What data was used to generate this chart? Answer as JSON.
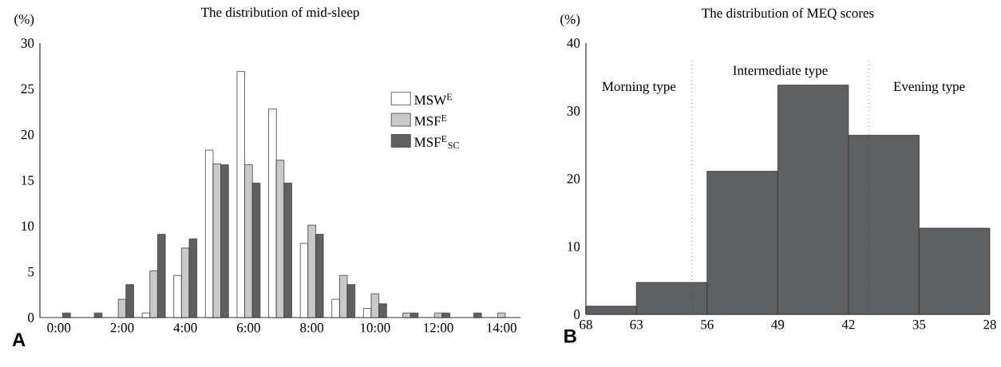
{
  "chart_data": [
    {
      "type": "bar",
      "title": "The distribution of mid-sleep",
      "ylabel": "(%)",
      "categories": [
        "0:00",
        null,
        "2:00",
        null,
        "4:00",
        null,
        "6:00",
        null,
        "8:00",
        null,
        "10:00",
        null,
        "12:00",
        null,
        "14:00"
      ],
      "series": [
        {
          "name": "MSW$^{E}$",
          "color": "#ffffff",
          "values": [
            null,
            null,
            null,
            0.5,
            4.6,
            18.3,
            26.9,
            22.8,
            8.1,
            2.0,
            1.0,
            null,
            null,
            null,
            null
          ]
        },
        {
          "name": "MSF$^{E}$",
          "color": "#c8c9cb",
          "values": [
            null,
            null,
            2.0,
            5.1,
            7.6,
            16.8,
            16.7,
            17.2,
            10.1,
            4.6,
            2.6,
            0.5,
            0.5,
            null,
            0.5
          ]
        },
        {
          "name": "MSF$^{E}$$_{SC}$",
          "color": "#5f6062",
          "values": [
            0.5,
            0.5,
            3.6,
            9.1,
            8.6,
            16.7,
            14.7,
            14.7,
            9.1,
            3.6,
            1.5,
            0.5,
            0.5,
            0.5,
            null
          ]
        }
      ],
      "ylim": [
        0,
        30
      ],
      "yticks": [
        0,
        5,
        10,
        15,
        20,
        25,
        30
      ],
      "legend": "top right",
      "annotations": [
        "A"
      ]
    },
    {
      "type": "histogram",
      "title": "The distribution of MEQ scores",
      "ylabel": "(%)",
      "bins": [
        68,
        63,
        56,
        49,
        42,
        35,
        28
      ],
      "values": [
        1.2,
        4.7,
        21.1,
        33.8,
        26.4,
        12.7
      ],
      "color": "#5f6062",
      "xlim": [
        68,
        28
      ],
      "xticks": [
        68,
        63,
        56,
        49,
        42,
        35,
        28
      ],
      "ylim": [
        0,
        40
      ],
      "yticks": [
        0,
        10,
        20,
        30,
        40
      ],
      "ref_lines": [
        {
          "axis": "x",
          "value": 57.5,
          "line_style": "dotted"
        },
        {
          "axis": "x",
          "value": 40,
          "line_style": "dotted"
        }
      ],
      "annotations": [
        "Morning type",
        "Intermediate type",
        "Evening type",
        "B"
      ]
    }
  ]
}
